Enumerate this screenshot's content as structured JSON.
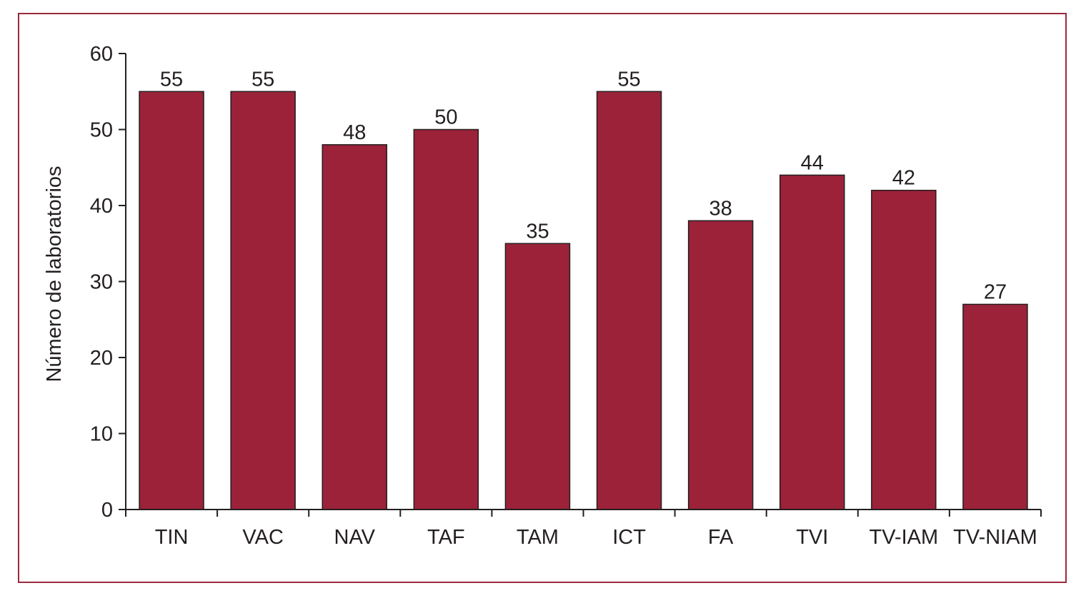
{
  "colors": {
    "bar": "#9b2239",
    "frame": "#9a2a3c",
    "axis": "#231f20",
    "text": "#231f20"
  },
  "chart_data": {
    "type": "bar",
    "title": "",
    "xlabel": "",
    "ylabel": "Número de laboratorios",
    "ylim": [
      0,
      60
    ],
    "yticks": [
      0,
      10,
      20,
      30,
      40,
      50,
      60
    ],
    "grid": false,
    "categories": [
      "TIN",
      "VAC",
      "NAV",
      "TAF",
      "TAM",
      "ICT",
      "FA",
      "TVI",
      "TV-IAM",
      "TV-NIAM"
    ],
    "values": [
      55,
      55,
      48,
      50,
      35,
      55,
      38,
      44,
      42,
      27
    ],
    "data_labels": [
      "55",
      "55",
      "48",
      "50",
      "35",
      "55",
      "38",
      "44",
      "42",
      "27"
    ]
  }
}
